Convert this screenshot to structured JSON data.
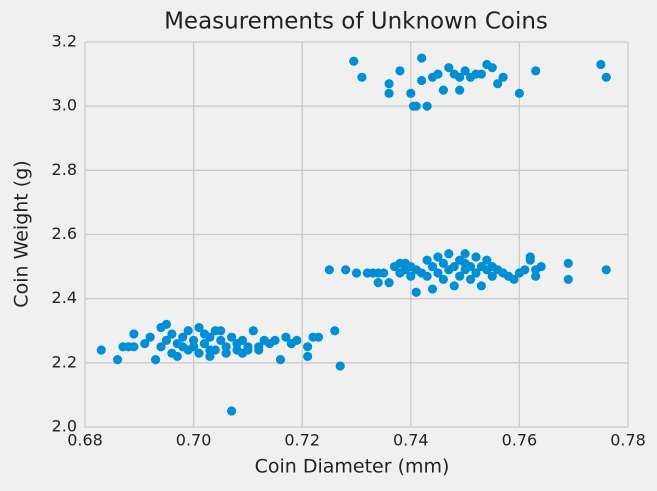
{
  "chart_data": {
    "type": "scatter",
    "title": "Measurements of Unknown Coins",
    "xlabel": "Coin Diameter (mm)",
    "ylabel": "Coin Weight (g)",
    "color": "#008fd5",
    "grid": true,
    "x": [
      0.683,
      0.686,
      0.687,
      0.688,
      0.689,
      0.689,
      0.691,
      0.692,
      0.693,
      0.694,
      0.695,
      0.694,
      0.695,
      0.696,
      0.696,
      0.697,
      0.697,
      0.698,
      0.699,
      0.699,
      0.7,
      0.7,
      0.701,
      0.701,
      0.702,
      0.702,
      0.703,
      0.703,
      0.704,
      0.704,
      0.705,
      0.705,
      0.706,
      0.706,
      0.707,
      0.707,
      0.708,
      0.708,
      0.709,
      0.709,
      0.71,
      0.71,
      0.711,
      0.712,
      0.713,
      0.714,
      0.715,
      0.716,
      0.717,
      0.718,
      0.719,
      0.721,
      0.721,
      0.722,
      0.723,
      0.726,
      0.727,
      0.712,
      0.698,
      0.703,
      0.725,
      0.728,
      0.73,
      0.732,
      0.733,
      0.734,
      0.735,
      0.734,
      0.736,
      0.737,
      0.738,
      0.738,
      0.739,
      0.74,
      0.74,
      0.741,
      0.741,
      0.742,
      0.743,
      0.743,
      0.744,
      0.744,
      0.745,
      0.745,
      0.746,
      0.746,
      0.747,
      0.747,
      0.748,
      0.748,
      0.749,
      0.749,
      0.75,
      0.75,
      0.751,
      0.751,
      0.752,
      0.752,
      0.753,
      0.753,
      0.754,
      0.754,
      0.755,
      0.755,
      0.756,
      0.757,
      0.758,
      0.759,
      0.76,
      0.761,
      0.762,
      0.762,
      0.763,
      0.763,
      0.764,
      0.769,
      0.769,
      0.776,
      0.739,
      0.75,
      0.7295,
      0.731,
      0.736,
      0.736,
      0.738,
      0.74,
      0.7405,
      0.741,
      0.742,
      0.742,
      0.743,
      0.744,
      0.745,
      0.746,
      0.747,
      0.748,
      0.749,
      0.749,
      0.75,
      0.752,
      0.754,
      0.755,
      0.756,
      0.757,
      0.76,
      0.763,
      0.775,
      0.776,
      0.751,
      0.753
    ],
    "values": [
      2.24,
      2.21,
      2.25,
      2.25,
      2.25,
      2.29,
      2.26,
      2.28,
      2.21,
      2.31,
      2.32,
      2.25,
      2.27,
      2.23,
      2.29,
      2.26,
      2.22,
      2.28,
      2.24,
      2.3,
      2.27,
      2.25,
      2.31,
      2.23,
      2.29,
      2.26,
      2.22,
      2.28,
      2.3,
      2.24,
      2.27,
      2.3,
      2.25,
      2.23,
      2.05,
      2.28,
      2.24,
      2.26,
      2.23,
      2.27,
      2.25,
      2.24,
      2.3,
      2.25,
      2.27,
      2.26,
      2.27,
      2.21,
      2.28,
      2.26,
      2.27,
      2.25,
      2.22,
      2.28,
      2.28,
      2.3,
      2.19,
      2.24,
      2.25,
      2.24,
      2.49,
      2.49,
      2.48,
      2.48,
      2.48,
      2.48,
      2.48,
      2.45,
      2.45,
      2.5,
      2.51,
      2.48,
      2.49,
      2.5,
      2.47,
      2.42,
      2.49,
      2.48,
      2.52,
      2.47,
      2.43,
      2.5,
      2.53,
      2.48,
      2.51,
      2.46,
      2.54,
      2.49,
      2.44,
      2.5,
      2.52,
      2.47,
      2.49,
      2.54,
      2.5,
      2.46,
      2.48,
      2.53,
      2.44,
      2.5,
      2.49,
      2.52,
      2.47,
      2.5,
      2.49,
      2.48,
      2.47,
      2.46,
      2.48,
      2.49,
      2.53,
      2.52,
      2.49,
      2.47,
      2.5,
      2.51,
      2.46,
      2.49,
      2.51,
      2.51,
      3.14,
      3.09,
      3.07,
      3.04,
      3.11,
      3.04,
      3.0,
      3.0,
      3.15,
      3.08,
      3.0,
      3.09,
      3.1,
      3.05,
      3.12,
      3.1,
      3.09,
      3.05,
      3.11,
      3.1,
      3.13,
      3.12,
      3.07,
      3.09,
      3.04,
      3.11,
      3.13,
      3.09,
      3.09,
      3.1
    ],
    "xlim": [
      0.68,
      0.78
    ],
    "ylim": [
      2.0,
      3.2
    ],
    "xticks": [
      0.68,
      {
        "value": 0.7,
        "label": "0.70"
      },
      0.72,
      0.74,
      0.76,
      0.78
    ],
    "yticks": [
      {
        "value": 2.0,
        "label": "2.0"
      },
      2.2,
      2.4,
      2.6,
      2.8,
      {
        "value": 3.0,
        "label": "3.0"
      },
      3.2
    ]
  }
}
